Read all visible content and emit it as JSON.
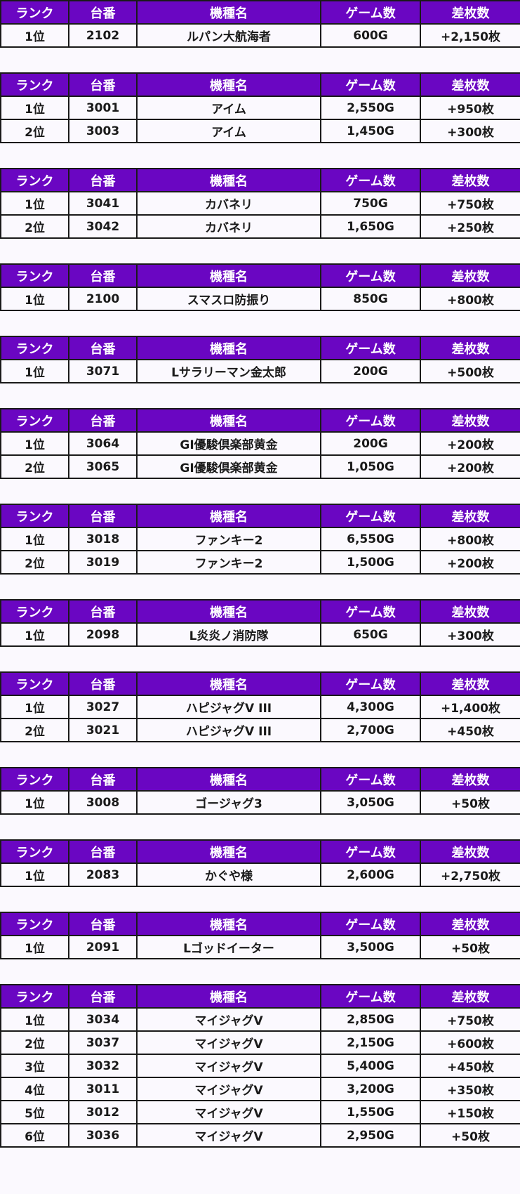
{
  "colors": {
    "header_bg": "#6a06c2",
    "header_text": "#ffffff",
    "row_bg": "#fbf9fe",
    "border": "#1a1a1a",
    "text": "#1a1a1a"
  },
  "headers": [
    "ランク",
    "台番",
    "機種名",
    "ゲーム数",
    "差枚数"
  ],
  "tables": [
    {
      "rows": [
        [
          "1位",
          "2102",
          "ルパン大航海者",
          "600G",
          "+2,150枚"
        ]
      ]
    },
    {
      "rows": [
        [
          "1位",
          "3001",
          "アイム",
          "2,550G",
          "+950枚"
        ],
        [
          "2位",
          "3003",
          "アイム",
          "1,450G",
          "+300枚"
        ]
      ]
    },
    {
      "rows": [
        [
          "1位",
          "3041",
          "カバネリ",
          "750G",
          "+750枚"
        ],
        [
          "2位",
          "3042",
          "カバネリ",
          "1,650G",
          "+250枚"
        ]
      ]
    },
    {
      "rows": [
        [
          "1位",
          "2100",
          "スマスロ防振り",
          "850G",
          "+800枚"
        ]
      ]
    },
    {
      "rows": [
        [
          "1位",
          "3071",
          "Lサラリーマン金太郎",
          "200G",
          "+500枚"
        ]
      ]
    },
    {
      "rows": [
        [
          "1位",
          "3064",
          "GI優駿倶楽部黄金",
          "200G",
          "+200枚"
        ],
        [
          "2位",
          "3065",
          "GI優駿倶楽部黄金",
          "1,050G",
          "+200枚"
        ]
      ]
    },
    {
      "rows": [
        [
          "1位",
          "3018",
          "ファンキー2",
          "6,550G",
          "+800枚"
        ],
        [
          "2位",
          "3019",
          "ファンキー2",
          "1,500G",
          "+200枚"
        ]
      ]
    },
    {
      "rows": [
        [
          "1位",
          "2098",
          "L炎炎ノ消防隊",
          "650G",
          "+300枚"
        ]
      ]
    },
    {
      "rows": [
        [
          "1位",
          "3027",
          "ハピジャグV III",
          "4,300G",
          "+1,400枚"
        ],
        [
          "2位",
          "3021",
          "ハピジャグV III",
          "2,700G",
          "+450枚"
        ]
      ]
    },
    {
      "rows": [
        [
          "1位",
          "3008",
          "ゴージャグ3",
          "3,050G",
          "+50枚"
        ]
      ]
    },
    {
      "rows": [
        [
          "1位",
          "2083",
          "かぐや様",
          "2,600G",
          "+2,750枚"
        ]
      ]
    },
    {
      "rows": [
        [
          "1位",
          "2091",
          "Lゴッドイーター",
          "3,500G",
          "+50枚"
        ]
      ]
    },
    {
      "rows": [
        [
          "1位",
          "3034",
          "マイジャグV",
          "2,850G",
          "+750枚"
        ],
        [
          "2位",
          "3037",
          "マイジャグV",
          "2,150G",
          "+600枚"
        ],
        [
          "3位",
          "3032",
          "マイジャグV",
          "5,400G",
          "+450枚"
        ],
        [
          "4位",
          "3011",
          "マイジャグV",
          "3,200G",
          "+350枚"
        ],
        [
          "5位",
          "3012",
          "マイジャグV",
          "1,550G",
          "+150枚"
        ],
        [
          "6位",
          "3036",
          "マイジャグV",
          "2,950G",
          "+50枚"
        ]
      ]
    }
  ]
}
